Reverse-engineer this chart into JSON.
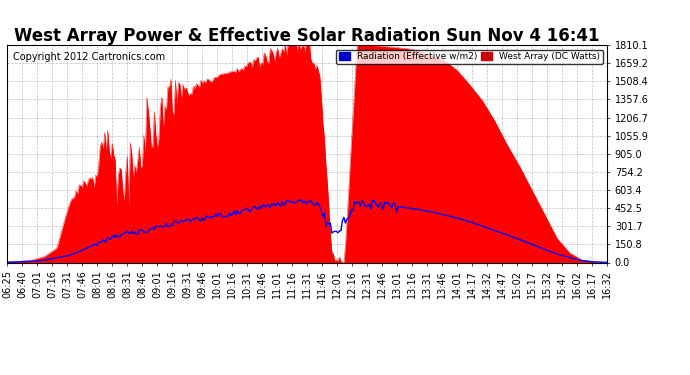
{
  "title": "West Array Power & Effective Solar Radiation Sun Nov 4 16:41",
  "copyright": "Copyright 2012 Cartronics.com",
  "legend_radiation": "Radiation (Effective w/m2)",
  "legend_west": "West Array (DC Watts)",
  "legend_radiation_bg": "#0000cc",
  "legend_west_bg": "#cc0000",
  "yticks": [
    0.0,
    150.8,
    301.7,
    452.5,
    603.4,
    754.2,
    905.0,
    1055.9,
    1206.7,
    1357.6,
    1508.4,
    1659.2,
    1810.1
  ],
  "ymax": 1810.1,
  "bg_color": "#ffffff",
  "plot_bg": "#ffffff",
  "grid_color": "#b0b0b0",
  "xtick_labels": [
    "06:25",
    "06:40",
    "07:01",
    "07:16",
    "07:31",
    "07:46",
    "08:01",
    "08:16",
    "08:31",
    "08:46",
    "09:01",
    "09:16",
    "09:31",
    "09:46",
    "10:01",
    "10:16",
    "10:31",
    "10:46",
    "11:01",
    "11:16",
    "11:31",
    "11:46",
    "12:01",
    "12:16",
    "12:31",
    "12:46",
    "13:01",
    "13:16",
    "13:31",
    "13:46",
    "14:01",
    "14:17",
    "14:32",
    "14:47",
    "15:02",
    "15:17",
    "15:32",
    "15:47",
    "16:02",
    "16:17",
    "16:32"
  ],
  "red_color": "#ff0000",
  "blue_color": "#0000ff",
  "title_fontsize": 12,
  "copyright_fontsize": 7,
  "tick_fontsize": 7,
  "west_data": [
    5,
    10,
    20,
    50,
    120,
    500,
    650,
    700,
    1050,
    580,
    750,
    1100,
    1200,
    1350,
    1380,
    1450,
    1500,
    1560,
    1590,
    1620,
    1660,
    1720,
    1760,
    1810,
    1810,
    1600,
    50,
    0,
    1810,
    1810,
    1800,
    1790,
    1780,
    1760,
    1720,
    1680,
    1600,
    1480,
    1350,
    1180,
    980,
    800,
    600,
    400,
    200,
    80,
    20,
    5,
    0
  ],
  "rad_data": [
    2,
    5,
    10,
    20,
    40,
    60,
    100,
    150,
    200,
    230,
    250,
    260,
    290,
    320,
    350,
    360,
    370,
    390,
    410,
    430,
    450,
    470,
    490,
    505,
    510,
    480,
    250,
    350,
    505,
    490,
    480,
    470,
    455,
    440,
    420,
    395,
    370,
    340,
    305,
    265,
    230,
    190,
    150,
    110,
    70,
    40,
    15,
    5,
    1
  ],
  "n_points": 49
}
